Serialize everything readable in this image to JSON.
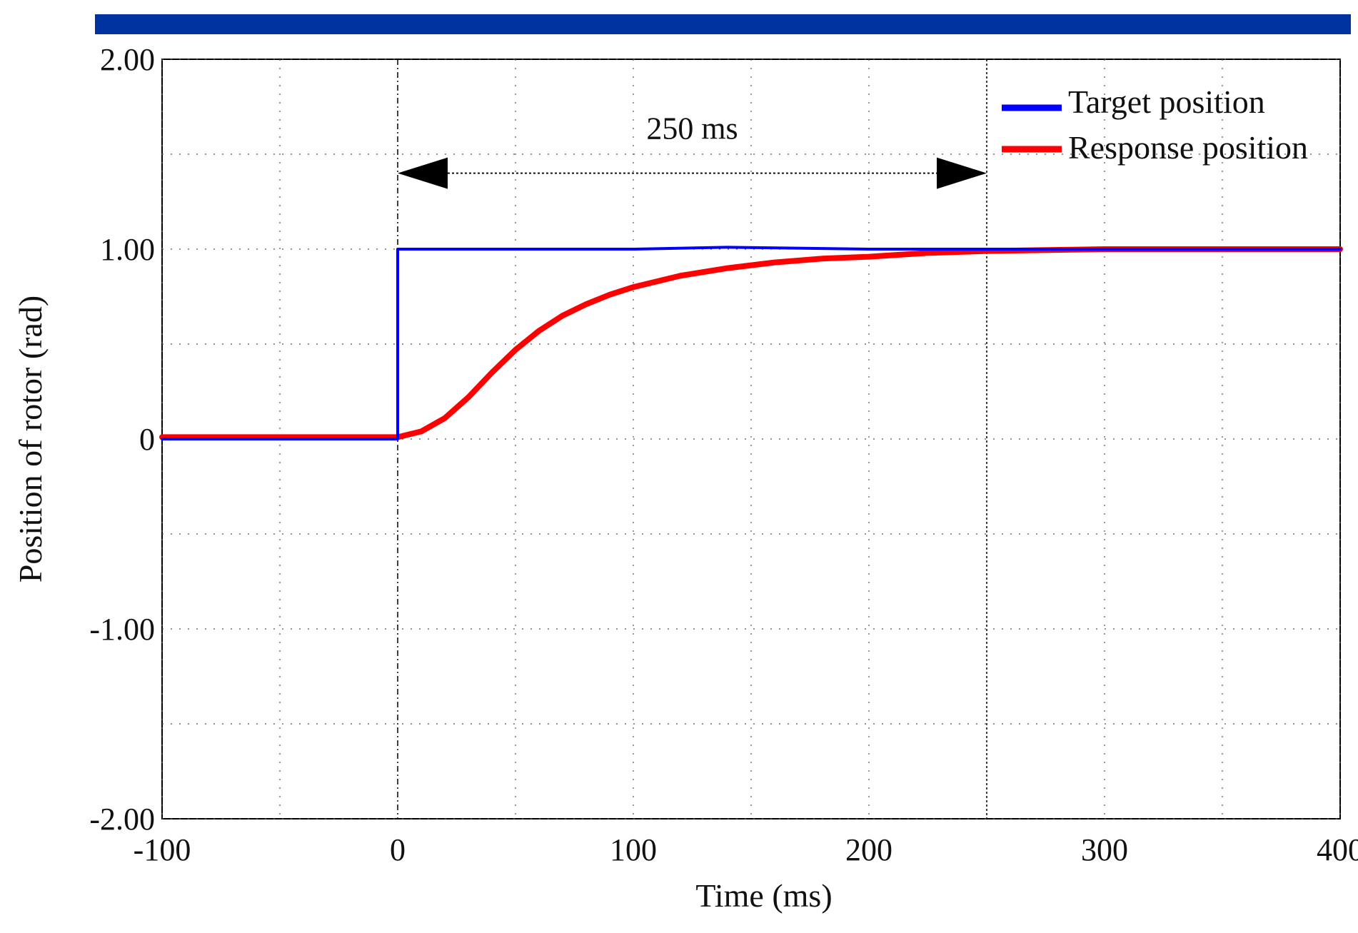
{
  "chart_data": {
    "type": "line",
    "xlabel": "Time (ms)",
    "ylabel": "Position of rotor (rad)",
    "xlim": [
      -100,
      400
    ],
    "ylim": [
      -2,
      2
    ],
    "x_ticks": [
      -100,
      0,
      100,
      200,
      300,
      400
    ],
    "x_tick_labels": [
      "-100",
      "0",
      "100",
      "200",
      "300",
      "400"
    ],
    "y_ticks": [
      -2,
      -1,
      0,
      1,
      2
    ],
    "y_tick_labels": [
      "-2.00",
      "-1.00",
      "0",
      "1.00",
      "2.00"
    ],
    "grid": "dotted",
    "legend_position": "top-right",
    "series": [
      {
        "name": "Target position",
        "color": "#0000ff",
        "x": [
          -100,
          -1,
          0,
          0,
          50,
          100,
          140,
          200,
          250,
          300,
          350,
          400
        ],
        "y": [
          0,
          0,
          0,
          1.0,
          1.0,
          1.0,
          1.01,
          1.0,
          1.0,
          1.0,
          1.0,
          1.0
        ]
      },
      {
        "name": "Response position",
        "color": "#ff0000",
        "x": [
          -100,
          -50,
          0,
          10,
          20,
          30,
          40,
          50,
          60,
          70,
          80,
          90,
          100,
          120,
          140,
          160,
          180,
          200,
          225,
          250,
          300,
          350,
          400
        ],
        "y": [
          0.01,
          0.01,
          0.01,
          0.04,
          0.11,
          0.22,
          0.35,
          0.47,
          0.57,
          0.65,
          0.71,
          0.76,
          0.8,
          0.86,
          0.9,
          0.93,
          0.95,
          0.96,
          0.98,
          0.99,
          1.0,
          1.0,
          1.0
        ]
      }
    ],
    "reference_lines_x": [
      0,
      250
    ],
    "annotations": [
      {
        "text": "250 ms",
        "x_start": 0,
        "x_end": 250,
        "y": 1.4,
        "label_x": 125,
        "label_y": 1.58
      }
    ]
  },
  "colors": {
    "top_bar": "#0033a0",
    "frame": "#000000",
    "grid": "#555555",
    "target": "#0000ff",
    "response": "#ff0000"
  }
}
